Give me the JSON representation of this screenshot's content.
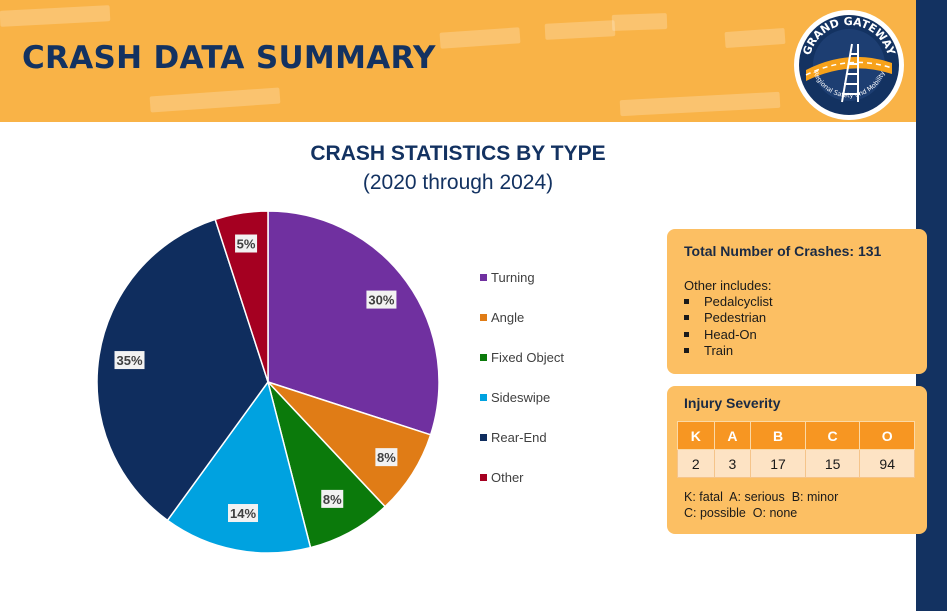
{
  "header": {
    "title": "CRASH DATA SUMMARY",
    "logo": {
      "top_text": "GRAND GATEWAY",
      "bottom_text": "Regional Safety and Mobility"
    }
  },
  "chart_data": {
    "type": "pie",
    "title": "CRASH STATISTICS BY TYPE",
    "subtitle": "(2020 through 2024)",
    "categories": [
      "Turning",
      "Angle",
      "Fixed Object",
      "Sideswipe",
      "Rear-End",
      "Other"
    ],
    "values": [
      30,
      8,
      8,
      14,
      35,
      5
    ],
    "labels": [
      "30%",
      "8%",
      "8%",
      "14%",
      "35%",
      "5%"
    ],
    "colors": [
      "#7030a0",
      "#e07c16",
      "#0b7a0b",
      "#00a2e0",
      "#0f2d5e",
      "#a50021"
    ],
    "legend_position": "right"
  },
  "summary_card": {
    "title": "Total Number of Crashes: 131",
    "intro": "Other includes:",
    "items": [
      "Pedalcyclist",
      "Pedestrian",
      "Head-On",
      "Train"
    ]
  },
  "severity_card": {
    "title": "Injury Severity",
    "headers": [
      "K",
      "A",
      "B",
      "C",
      "O"
    ],
    "values": [
      "2",
      "3",
      "17",
      "15",
      "94"
    ],
    "legend_line1": "K: fatal  A: serious  B: minor",
    "legend_line2": "C: possible  O: none"
  },
  "colors": {
    "banner": "#f9b347",
    "navy": "#133261",
    "card": "#fcbf63",
    "table_header": "#f79622"
  }
}
